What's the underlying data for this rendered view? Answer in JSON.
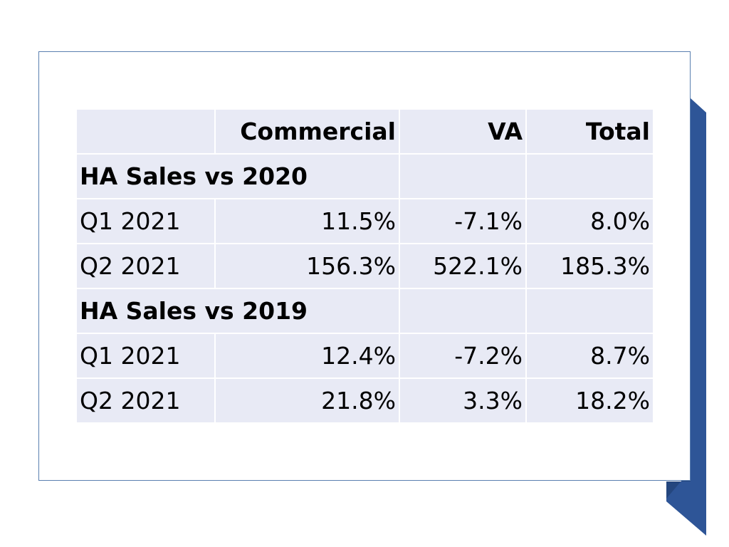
{
  "table": {
    "headers": [
      "",
      "Commercial",
      "VA",
      "Total"
    ],
    "sections": [
      {
        "title": "HA Sales vs 2020",
        "rows": [
          {
            "label": "Q1 2021",
            "commercial": "11.5%",
            "va": "-7.1%",
            "total": "8.0%"
          },
          {
            "label": "Q2 2021",
            "commercial": "156.3%",
            "va": "522.1%",
            "total": "185.3%"
          }
        ]
      },
      {
        "title": "HA Sales vs 2019",
        "rows": [
          {
            "label": "Q1 2021",
            "commercial": "12.4%",
            "va": "-7.2%",
            "total": "8.7%"
          },
          {
            "label": "Q2 2021",
            "commercial": "21.8%",
            "va": "3.3%",
            "total": "18.2%"
          }
        ]
      }
    ]
  },
  "colors": {
    "cell_background": "#e8eaf5",
    "ribbon": "#2e5597",
    "card_border": "#5a7fb0"
  }
}
